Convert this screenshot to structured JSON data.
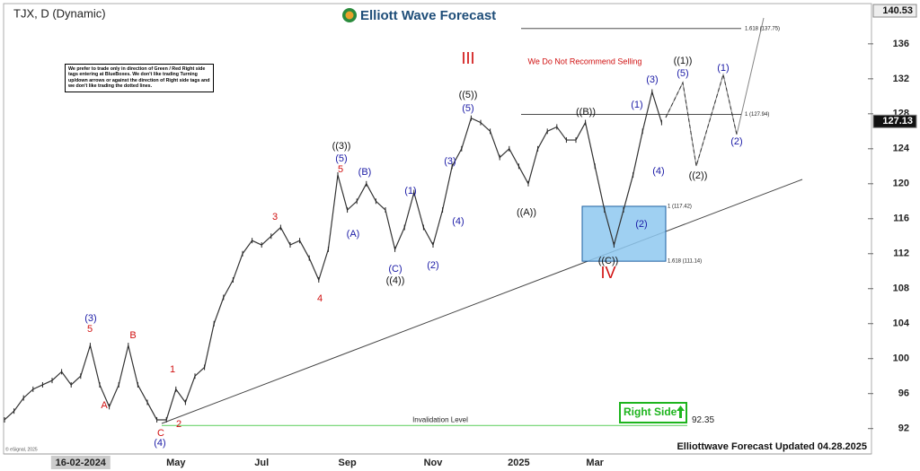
{
  "chart_data": {
    "type": "line",
    "title": "TJX, D (Dynamic)",
    "color": "#333333",
    "categories": [
      null,
      null,
      null,
      null,
      null,
      null,
      null,
      null,
      "16-02-2024",
      null,
      null,
      null,
      null,
      null,
      null,
      null,
      null,
      null,
      "May",
      null,
      null,
      null,
      null,
      null,
      null,
      null,
      null,
      "Jul",
      null,
      null,
      null,
      null,
      null,
      null,
      null,
      null,
      "Sep",
      null,
      null,
      null,
      null,
      null,
      null,
      null,
      null,
      "Nov",
      null,
      null,
      null,
      null,
      null,
      null,
      null,
      null,
      "2025",
      null,
      null,
      null,
      null,
      null,
      null,
      null,
      "Mar",
      null,
      null,
      null,
      null,
      null,
      null,
      null
    ],
    "values": [
      93,
      94,
      95.5,
      96.5,
      97,
      97.5,
      98.5,
      97,
      98,
      101.5,
      97,
      94.5,
      97,
      101.5,
      97,
      95,
      93,
      93,
      96.5,
      95,
      98,
      99,
      104,
      107,
      109,
      112,
      113.5,
      113,
      114,
      115,
      113,
      113.5,
      111.5,
      109,
      112.5,
      121,
      117,
      118,
      120,
      118,
      117,
      112.5,
      115,
      119,
      115,
      113,
      117,
      122,
      124,
      127.5,
      127,
      126,
      123,
      124,
      122,
      120,
      124,
      126,
      126.5,
      125,
      125,
      127,
      122,
      117,
      113,
      117,
      121,
      126,
      130.5,
      127
    ],
    "ylim": [
      89.2,
      140.5
    ],
    "yticks": [
      92,
      96,
      100,
      104,
      108,
      112,
      116,
      120,
      124,
      128,
      132,
      136
    ],
    "price_labels": [
      140.53,
      127.13
    ],
    "levels": [
      {
        "value": 137.75,
        "label": "1.618 (137.75)"
      },
      {
        "value": 127.94,
        "label": "1 (127.94)"
      },
      {
        "value": 117.42,
        "label": "1 (117.42)"
      },
      {
        "value": 111.14,
        "label": "1.618 (111.14)"
      }
    ],
    "invalidation": {
      "value": 92.35,
      "label": "Invalidation Level"
    },
    "annotations": [
      {
        "text": "(3)",
        "color": "#1a1aa6"
      },
      {
        "text": "5",
        "color": "#d01010"
      },
      {
        "text": "B",
        "color": "#d01010"
      },
      {
        "text": "A",
        "color": "#d01010"
      },
      {
        "text": "1",
        "color": "#d01010"
      },
      {
        "text": "C",
        "color": "#d01010"
      },
      {
        "text": "2",
        "color": "#d01010"
      },
      {
        "text": "(4)",
        "color": "#1a1aa6"
      },
      {
        "text": "3",
        "color": "#d01010"
      },
      {
        "text": "4",
        "color": "#d01010"
      },
      {
        "text": "((3))",
        "color": "#111111"
      },
      {
        "text": "(5)",
        "color": "#1a1aa6"
      },
      {
        "text": "5",
        "color": "#d01010"
      },
      {
        "text": "(B)",
        "color": "#1a1aa6"
      },
      {
        "text": "(A)",
        "color": "#1a1aa6"
      },
      {
        "text": "(1)",
        "color": "#1a1aa6"
      },
      {
        "text": "(C)",
        "color": "#1a1aa6"
      },
      {
        "text": "((4))",
        "color": "#111111"
      },
      {
        "text": "(2)",
        "color": "#1a1aa6"
      },
      {
        "text": "(3)",
        "color": "#1a1aa6"
      },
      {
        "text": "(4)",
        "color": "#1a1aa6"
      },
      {
        "text": "III",
        "color": "#d01010"
      },
      {
        "text": "((5))",
        "color": "#111111"
      },
      {
        "text": "(5)",
        "color": "#1a1aa6"
      },
      {
        "text": "((A))",
        "color": "#111111"
      },
      {
        "text": "((B))",
        "color": "#111111"
      },
      {
        "text": "((C))",
        "color": "#111111"
      },
      {
        "text": "IV",
        "color": "#d01010"
      },
      {
        "text": "(1)",
        "color": "#1a1aa6"
      },
      {
        "text": "(2)",
        "color": "#1a1aa6"
      },
      {
        "text": "(3)",
        "color": "#1a1aa6"
      },
      {
        "text": "(4)",
        "color": "#1a1aa6"
      },
      {
        "text": "(5)",
        "color": "#1a1aa6"
      },
      {
        "text": "((1))",
        "color": "#111111"
      },
      {
        "text": "((2))",
        "color": "#111111"
      },
      {
        "text": "(1)",
        "color": "#1a1aa6"
      },
      {
        "text": "(2)",
        "color": "#1a1aa6"
      },
      {
        "text": "We Do Not Recommend Selling",
        "color": "#d01010"
      }
    ]
  },
  "brand": "Elliott Wave Forecast",
  "disclaimer": "We prefer to trade only in direction of Green / Red Right side tags entering at BlueBoxes. We don't like trading Turning up/down arrows or against the direction of Right side tags and we don't like trading the dotted lines.",
  "right_side": "Right Side",
  "footer": "Elliottwave Forecast Updated 04.28.2025",
  "copyright": "© eSignal, 2025"
}
